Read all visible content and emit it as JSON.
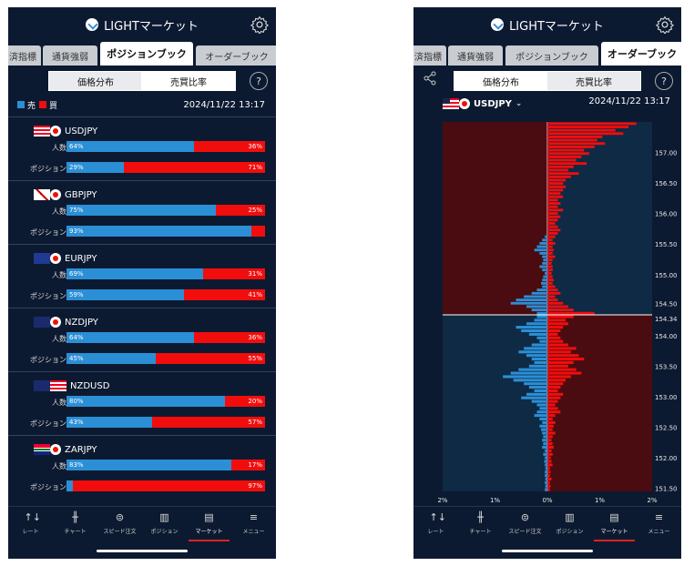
{
  "left": {
    "app_title": "LIGHTマーケット",
    "tabs": [
      "済指標",
      "通貨強弱",
      "ポジションブック",
      "オーダーブック"
    ],
    "active_tab": 2,
    "segments": [
      "価格分布",
      "売買比率"
    ],
    "active_segment": 1,
    "help": "?",
    "legend": {
      "sell": "売",
      "buy": "買",
      "sell_color": "#2b8fd6",
      "buy_color": "#f20d0d"
    },
    "timestamp": "2024/11/22 13:17",
    "row_labels": {
      "people": "人数",
      "position": "ポジション"
    },
    "pairs": [
      {
        "name": "USDJPY",
        "flag_l": "us",
        "people": {
          "left": 64,
          "right": 36,
          "left_text": "64%",
          "right_text": "36%"
        },
        "position": {
          "left": 29,
          "right": 71,
          "left_text": "29%",
          "right_text": "71%"
        }
      },
      {
        "name": "GBPJPY",
        "flag_l": "gb",
        "people": {
          "left": 75,
          "right": 25,
          "left_text": "75%",
          "right_text": "25%"
        },
        "position": {
          "left": 93,
          "right": 7,
          "left_text": "93%",
          "right_text": ""
        }
      },
      {
        "name": "EURJPY",
        "flag_l": "eu",
        "people": {
          "left": 69,
          "right": 31,
          "left_text": "69%",
          "right_text": "31%"
        },
        "position": {
          "left": 59,
          "right": 41,
          "left_text": "59%",
          "right_text": "41%"
        }
      },
      {
        "name": "NZDJPY",
        "flag_l": "nz",
        "people": {
          "left": 64,
          "right": 36,
          "left_text": "64%",
          "right_text": "36%"
        },
        "position": {
          "left": 45,
          "right": 55,
          "left_text": "45%",
          "right_text": "55%"
        }
      },
      {
        "name": "NZDUSD",
        "flag_l": "nz",
        "flag_r": "us",
        "people": {
          "left": 80,
          "right": 20,
          "left_text": "80%",
          "right_text": "20%"
        },
        "position": {
          "left": 43,
          "right": 57,
          "left_text": "43%",
          "right_text": "57%"
        }
      },
      {
        "name": "ZARJPY",
        "flag_l": "za",
        "people": {
          "left": 83,
          "right": 17,
          "left_text": "83%",
          "right_text": "17%"
        },
        "position": {
          "left": 3,
          "right": 97,
          "left_text": "",
          "right_text": "97%"
        }
      }
    ]
  },
  "right": {
    "app_title": "LIGHTマーケット",
    "tabs": [
      "済指標",
      "通貨強弱",
      "ポジションブック",
      "オーダーブック"
    ],
    "active_tab": 3,
    "segments": [
      "価格分布",
      "売買比率"
    ],
    "active_segment": 0,
    "help": "?",
    "symbol": "USDJPY",
    "symbol_chevron": "⌄",
    "timestamp": "2024/11/22 13:17",
    "chart_data": {
      "type": "bar",
      "orientation": "horizontal",
      "current_price": 154.34,
      "y_ticks": [
        "157.00",
        "156.50",
        "156.00",
        "155.50",
        "155.00",
        "154.50",
        "154.34",
        "154.00",
        "153.50",
        "153.00",
        "152.50",
        "152.00",
        "151.50"
      ],
      "x_ticks": [
        "2%",
        "1%",
        "0%",
        "1%",
        "2%"
      ],
      "ylim": [
        151.45,
        157.5
      ],
      "xlim": [
        -2,
        2
      ],
      "colors": {
        "sell": "#2b8fd6",
        "buy": "#f20d0d",
        "bg_upper_left": "#0e2a44",
        "bg_upper_right": "#4a0c10"
      },
      "right_series_above": [
        1.7,
        1.55,
        1.3,
        1.45,
        1.05,
        0.95,
        1.1,
        0.9,
        0.7,
        0.8,
        0.65,
        0.55,
        0.75,
        0.5,
        0.4,
        0.6,
        0.45,
        0.35,
        0.3,
        0.35,
        0.3,
        0.25,
        0.3,
        0.2,
        0.25,
        0.2,
        0.3,
        0.2,
        0.25,
        0.2,
        0.15,
        0.2,
        0.25,
        0.2,
        0.15,
        0.1,
        0.15,
        0.1,
        0.12,
        0.1,
        0.15,
        0.1,
        0.08,
        0.1,
        0.1,
        0.08,
        0.1,
        0.12,
        0.1,
        0.15,
        0.2,
        0.25,
        0.15,
        0.2,
        0.3,
        0.4,
        0.5,
        0.9
      ],
      "left_series_above": [
        0,
        0,
        0,
        0,
        0,
        0,
        0,
        0,
        0,
        0,
        0,
        0,
        0,
        0,
        0,
        0,
        0,
        0,
        0,
        0,
        0,
        0,
        0,
        0,
        0,
        0,
        0,
        0,
        0,
        0,
        0,
        0,
        0,
        0,
        0.05,
        0.1,
        0.15,
        0.2,
        0.25,
        0.15,
        0.1,
        0.08,
        0.1,
        0.15,
        0.1,
        0.05,
        0.08,
        0.1,
        0.12,
        0.1,
        0.2,
        0.3,
        0.45,
        0.6,
        0.7,
        0.4,
        0.3,
        0.2
      ],
      "left_series_below": [
        0.2,
        0.25,
        0.4,
        0.6,
        0.5,
        0.35,
        0.2,
        0.15,
        0.3,
        0.45,
        0.55,
        0.4,
        0.3,
        0.25,
        0.35,
        0.55,
        0.7,
        0.85,
        0.65,
        0.45,
        0.35,
        0.25,
        0.4,
        0.5,
        0.3,
        0.2,
        0.15,
        0.2,
        0.25,
        0.15,
        0.1,
        0.15,
        0.12,
        0.1,
        0.08,
        0.1,
        0.08,
        0.1,
        0.05,
        0.08,
        0.05,
        0.06,
        0.05,
        0.04,
        0.05,
        0.05,
        0.04,
        0.05,
        0.04,
        0.05
      ],
      "right_series_below": [
        0.5,
        0.35,
        0.4,
        0.3,
        0.25,
        0.2,
        0.25,
        0.3,
        0.4,
        0.55,
        0.45,
        0.6,
        0.7,
        0.5,
        0.4,
        0.55,
        0.65,
        0.45,
        0.35,
        0.3,
        0.25,
        0.2,
        0.3,
        0.25,
        0.2,
        0.15,
        0.2,
        0.25,
        0.15,
        0.1,
        0.15,
        0.12,
        0.1,
        0.15,
        0.1,
        0.08,
        0.1,
        0.12,
        0.08,
        0.1,
        0.06,
        0.08,
        0.1,
        0.05,
        0.06,
        0.05,
        0.08,
        0.05,
        0.06,
        0.05
      ]
    }
  },
  "nav": {
    "items": [
      {
        "label": "レート",
        "icon": "↑↓"
      },
      {
        "label": "チャート",
        "icon": "╫"
      },
      {
        "label": "スピード注文",
        "icon": "⊜"
      },
      {
        "label": "ポジション",
        "icon": "▥"
      },
      {
        "label": "マーケット",
        "icon": "▤"
      },
      {
        "label": "メニュー",
        "icon": "≡"
      }
    ],
    "active": 4
  }
}
